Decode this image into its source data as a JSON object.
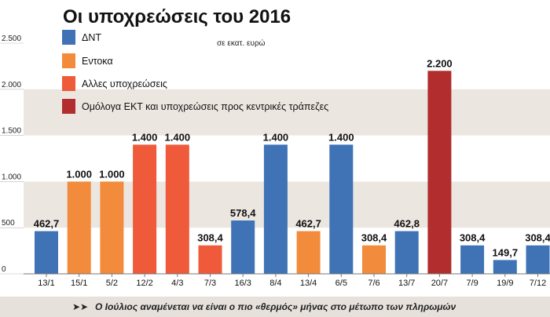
{
  "colors": {
    "dnt": "#3f73b6",
    "entoka": "#f28b3c",
    "alles": "#ee5a3a",
    "ekt": "#b22d2d",
    "band": "#ece6e1",
    "footer_bg": "#e7e1dc"
  },
  "chart_data": {
    "type": "bar",
    "title": "Οι υποχρεώσεις του 2016",
    "unit_note": "σε εκατ. ευρώ",
    "xlabel": "",
    "ylabel": "",
    "ylim": [
      0,
      2500
    ],
    "y_ticks": [
      0,
      500,
      1000,
      1500,
      2000,
      2500
    ],
    "y_tick_labels": [
      "0",
      "500",
      "1.000",
      "1.500",
      "2.000",
      "2.500"
    ],
    "grid": "alternating horizontal bands",
    "legend_position": "top-left",
    "legend": [
      {
        "key": "dnt",
        "label": "ΔΝΤ",
        "color": "#3f73b6"
      },
      {
        "key": "entoka",
        "label": "Εντοκα",
        "color": "#f28b3c"
      },
      {
        "key": "alles",
        "label": "Αλλες υποχρεώσεις",
        "color": "#ee5a3a"
      },
      {
        "key": "ekt",
        "label": "Ομόλογα ΕΚΤ και υποχρεώσεις προς κεντρικές τράπεζες",
        "color": "#b22d2d"
      }
    ],
    "categories": [
      "13/1",
      "15/1",
      "5/2",
      "12/2",
      "4/3",
      "7/3",
      "16/3",
      "8/4",
      "13/4",
      "6/5",
      "7/6",
      "13/7",
      "20/7",
      "7/9",
      "19/9",
      "7/12"
    ],
    "values": [
      462.7,
      1000,
      1000,
      1400,
      1400,
      308.4,
      578.4,
      1400,
      462.7,
      1400,
      308.4,
      462.8,
      2200,
      308.4,
      149.7,
      308.4
    ],
    "value_labels": [
      "462,7",
      "1.000",
      "1.000",
      "1.400",
      "1.400",
      "308,4",
      "578,4",
      "1.400",
      "462,7",
      "1.400",
      "308,4",
      "462,8",
      "2.200",
      "308,4",
      "149,7",
      "308,4"
    ],
    "bar_types": [
      "dnt",
      "entoka",
      "entoka",
      "alles",
      "alles",
      "alles",
      "dnt",
      "dnt",
      "entoka",
      "dnt",
      "entoka",
      "dnt",
      "ekt",
      "dnt",
      "dnt",
      "dnt"
    ]
  },
  "footer": {
    "arrow": "➤➤",
    "text": "Ο Ιούλιος αναμένεται να είναι ο πιο «θερμός» μήνας στο μέτωπο των πληρωμών"
  }
}
